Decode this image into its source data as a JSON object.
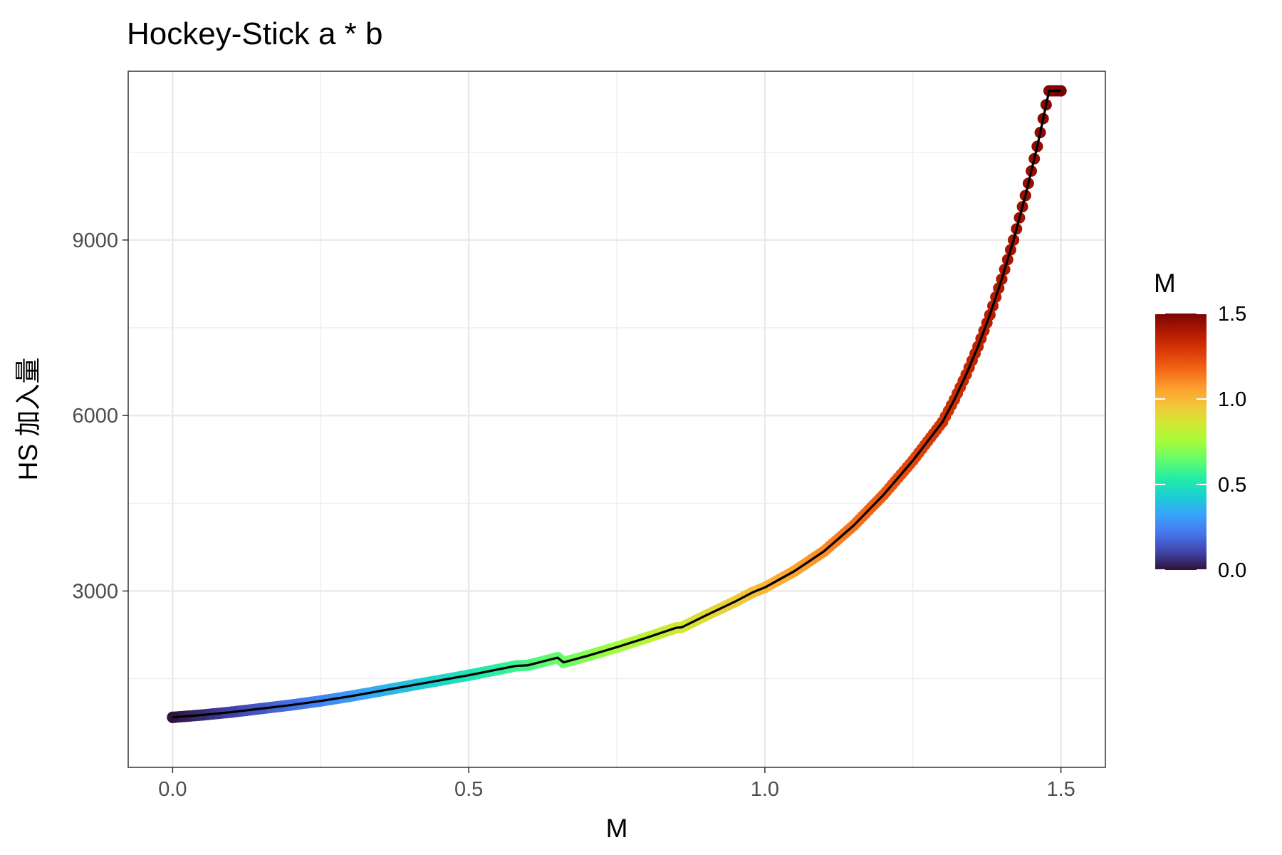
{
  "chart_data": {
    "type": "scatter",
    "title": "Hockey-Stick a * b",
    "xlabel": "M",
    "ylabel": "HS 加入量",
    "xlim": [
      -0.075,
      1.575
    ],
    "ylim": [
      -15,
      11885
    ],
    "x_ticks": [
      0.0,
      0.5,
      1.0,
      1.5
    ],
    "x_tick_labels": [
      "0.0",
      "0.5",
      "1.0",
      "1.5"
    ],
    "y_ticks": [
      3000,
      6000,
      9000
    ],
    "y_tick_labels": [
      "3000",
      "6000",
      "9000"
    ],
    "x_minor_ticks": [
      0.25,
      0.75,
      1.25
    ],
    "y_minor_ticks": [
      1500,
      4500,
      7500,
      10500
    ],
    "grid": true,
    "legend": {
      "title": "M",
      "position": "right",
      "type": "colorbar",
      "range": [
        0,
        1.5
      ],
      "ticks": [
        0.0,
        0.5,
        1.0,
        1.5
      ],
      "tick_labels": [
        "0.0",
        "0.5",
        "1.0",
        "1.5"
      ],
      "colormap": "turbo",
      "colormap_stops": [
        "#30123b",
        "#4145ab",
        "#4675ed",
        "#39a2fc",
        "#1bcfd4",
        "#24eca6",
        "#61fc6c",
        "#a4fc3b",
        "#d1e834",
        "#f3c63a",
        "#fe9b2d",
        "#f36315",
        "#d93806",
        "#b11901",
        "#7a0403"
      ]
    },
    "series": [
      {
        "marker": "point",
        "color_by": "M",
        "x": [
          0.0,
          0.05,
          0.1,
          0.15,
          0.2,
          0.25,
          0.3,
          0.35,
          0.4,
          0.45,
          0.5,
          0.55,
          0.58,
          0.6,
          0.65,
          0.66,
          0.7,
          0.75,
          0.8,
          0.85,
          0.86,
          0.9,
          0.95,
          0.98,
          1.0,
          1.05,
          1.1,
          1.15,
          1.2,
          1.25,
          1.3,
          1.32,
          1.34,
          1.36,
          1.38,
          1.4,
          1.42,
          1.44,
          1.46,
          1.48,
          1.5
        ],
        "y": [
          840,
          880,
          930,
          990,
          1050,
          1120,
          1200,
          1290,
          1380,
          1470,
          1560,
          1660,
          1720,
          1730,
          1860,
          1780,
          1890,
          2040,
          2200,
          2370,
          2380,
          2580,
          2820,
          2980,
          3060,
          3340,
          3680,
          4120,
          4640,
          5230,
          5890,
          6270,
          6700,
          7180,
          7720,
          8330,
          9000,
          9760,
          10600,
          11550,
          11550
        ]
      },
      {
        "marker": "line",
        "color": "#000000",
        "x": [
          0.0,
          0.05,
          0.1,
          0.15,
          0.2,
          0.25,
          0.3,
          0.35,
          0.4,
          0.45,
          0.5,
          0.55,
          0.58,
          0.6,
          0.65,
          0.66,
          0.7,
          0.75,
          0.8,
          0.85,
          0.86,
          0.9,
          0.95,
          0.98,
          1.0,
          1.05,
          1.1,
          1.15,
          1.2,
          1.25,
          1.3,
          1.32,
          1.34,
          1.36,
          1.38,
          1.4,
          1.42,
          1.44,
          1.46,
          1.48,
          1.5
        ],
        "y": [
          840,
          880,
          930,
          990,
          1050,
          1120,
          1200,
          1290,
          1380,
          1470,
          1560,
          1660,
          1720,
          1730,
          1860,
          1780,
          1890,
          2040,
          2200,
          2370,
          2380,
          2580,
          2820,
          2980,
          3060,
          3340,
          3680,
          4120,
          4640,
          5230,
          5890,
          6270,
          6700,
          7180,
          7720,
          8330,
          9000,
          9760,
          10600,
          11550,
          11550
        ]
      }
    ]
  }
}
